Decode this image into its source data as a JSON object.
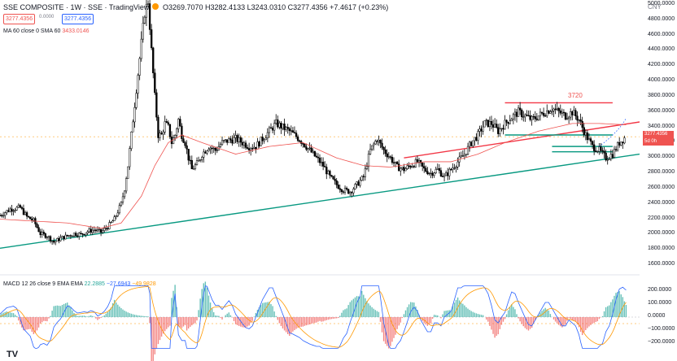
{
  "header": {
    "title": "SSE COMPOSITE · 1W · SSE · TradingView",
    "ohlc": "O3269.7070 H3282.4133 L3243.0310 C3277.4356 +7.4617 (+0.23%)",
    "bid": "3277.4356",
    "spread": "0.0000",
    "ask": "3277.4356",
    "ma_label": "MA 60 close 0 SMA 60",
    "ma_value": "3433.0146",
    "currency": "CNY",
    "logo": "TV"
  },
  "macd": {
    "label": "MACD 12 26 close 9 EMA EMA",
    "hist": "22.2885",
    "macd": "−27.6943",
    "signal": "−49.9828"
  },
  "price_tag": {
    "line1": "3277.4356",
    "line2": "5d 0h"
  },
  "annotation": "3720",
  "colors": {
    "up": "#26a69a",
    "down": "#ef5350",
    "candle": "#000000",
    "ma": "#ef5350",
    "support": "#089981",
    "resistance": "#f23645",
    "macd": "#2962ff",
    "signal": "#ff9800"
  },
  "chart_data": {
    "type": "candlestick",
    "symbol": "SSE COMPOSITE",
    "interval": "1W",
    "ylim": [
      1500,
      5000
    ],
    "y_ticks": [
      "5000.0000",
      "4800.0000",
      "4600.0000",
      "4400.0000",
      "4200.0000",
      "4000.0000",
      "3800.0000",
      "3600.0000",
      "3400.0000",
      "3200.0000",
      "3000.0000",
      "2800.0000",
      "2600.0000",
      "2400.0000",
      "2200.0000",
      "2000.0000",
      "1800.0000",
      "1600.0000"
    ],
    "macd_ticks": [
      "200.0000",
      "100.0000",
      "0.0000",
      "−100.0000",
      "−200.0000"
    ],
    "macd_ylim": [
      -250,
      250
    ],
    "price_path": [
      [
        0,
        2250
      ],
      [
        3,
        2330
      ],
      [
        6,
        2350
      ],
      [
        8,
        2230
      ],
      [
        10,
        2180
      ],
      [
        12,
        2010
      ],
      [
        14,
        1980
      ],
      [
        16,
        1900
      ],
      [
        18,
        1950
      ],
      [
        20,
        1980
      ],
      [
        22,
        2010
      ],
      [
        24,
        2000
      ],
      [
        26,
        2040
      ],
      [
        28,
        2060
      ],
      [
        30,
        2030
      ],
      [
        32,
        2100
      ],
      [
        34,
        2200
      ],
      [
        36,
        2400
      ],
      [
        37,
        2600
      ],
      [
        38,
        2900
      ],
      [
        39,
        3300
      ],
      [
        40,
        3700
      ],
      [
        41,
        4100
      ],
      [
        42,
        4500
      ],
      [
        43,
        4900
      ],
      [
        44,
        5050
      ],
      [
        45,
        4400
      ],
      [
        46,
        3800
      ],
      [
        47,
        3300
      ],
      [
        48,
        3300
      ],
      [
        49,
        3450
      ],
      [
        50,
        3400
      ],
      [
        51,
        3200
      ],
      [
        52,
        3300
      ],
      [
        53,
        3500
      ],
      [
        54,
        3300
      ],
      [
        55,
        3200
      ],
      [
        56,
        3000
      ],
      [
        57,
        2850
      ],
      [
        58,
        2900
      ],
      [
        59,
        2950
      ],
      [
        60,
        3050
      ],
      [
        62,
        3150
      ],
      [
        64,
        3100
      ],
      [
        66,
        3200
      ],
      [
        68,
        3230
      ],
      [
        70,
        3250
      ],
      [
        72,
        3200
      ],
      [
        74,
        3150
      ],
      [
        76,
        3150
      ],
      [
        78,
        3250
      ],
      [
        80,
        3350
      ],
      [
        82,
        3450
      ],
      [
        84,
        3400
      ],
      [
        86,
        3350
      ],
      [
        88,
        3280
      ],
      [
        90,
        3200
      ],
      [
        92,
        3100
      ],
      [
        94,
        3000
      ],
      [
        96,
        2900
      ],
      [
        98,
        2750
      ],
      [
        100,
        2650
      ],
      [
        102,
        2580
      ],
      [
        104,
        2560
      ],
      [
        106,
        2650
      ],
      [
        108,
        2750
      ],
      [
        110,
        3100
      ],
      [
        112,
        3250
      ],
      [
        114,
        3100
      ],
      [
        116,
        3000
      ],
      [
        118,
        2880
      ],
      [
        120,
        2850
      ],
      [
        122,
        2900
      ],
      [
        124,
        2950
      ],
      [
        126,
        2850
      ],
      [
        128,
        2800
      ],
      [
        130,
        2850
      ],
      [
        132,
        2750
      ],
      [
        134,
        2850
      ],
      [
        136,
        2950
      ],
      [
        138,
        3050
      ],
      [
        140,
        3200
      ],
      [
        142,
        3300
      ],
      [
        144,
        3450
      ],
      [
        146,
        3450
      ],
      [
        148,
        3350
      ],
      [
        150,
        3450
      ],
      [
        152,
        3530
      ],
      [
        154,
        3600
      ],
      [
        156,
        3550
      ],
      [
        158,
        3500
      ],
      [
        160,
        3550
      ],
      [
        162,
        3600
      ],
      [
        164,
        3650
      ],
      [
        166,
        3600
      ],
      [
        168,
        3550
      ],
      [
        170,
        3600
      ],
      [
        172,
        3500
      ],
      [
        174,
        3300
      ],
      [
        176,
        3150
      ],
      [
        178,
        3100
      ],
      [
        180,
        3000
      ],
      [
        182,
        3050
      ],
      [
        184,
        3200
      ],
      [
        186,
        3280
      ]
    ],
    "ma60_path": [
      [
        0,
        2200
      ],
      [
        20,
        2150
      ],
      [
        30,
        2080
      ],
      [
        36,
        2150
      ],
      [
        42,
        2500
      ],
      [
        46,
        2900
      ],
      [
        50,
        3200
      ],
      [
        54,
        3300
      ],
      [
        60,
        3200
      ],
      [
        70,
        3050
      ],
      [
        80,
        3150
      ],
      [
        90,
        3200
      ],
      [
        100,
        3000
      ],
      [
        108,
        2900
      ],
      [
        116,
        2880
      ],
      [
        126,
        2950
      ],
      [
        134,
        2950
      ],
      [
        142,
        3050
      ],
      [
        150,
        3200
      ],
      [
        160,
        3350
      ],
      [
        170,
        3450
      ],
      [
        178,
        3450
      ],
      [
        186,
        3433
      ]
    ],
    "lines": [
      {
        "kind": "support",
        "x": [
          0,
          190
        ],
        "y": [
          1820,
          3050
        ]
      },
      {
        "kind": "resistance",
        "x": [
          120,
          190
        ],
        "y": [
          3000,
          3470
        ]
      },
      {
        "kind": "horizontal-red",
        "x": [
          150,
          182
        ],
        "y": [
          3720,
          3720
        ]
      },
      {
        "kind": "horizontal-teal",
        "x": [
          150,
          182
        ],
        "y": [
          3300,
          3300
        ]
      },
      {
        "kind": "horizontal-teal",
        "x": [
          164,
          182
        ],
        "y": [
          3150,
          3150
        ]
      },
      {
        "kind": "horizontal-teal",
        "x": [
          164,
          182
        ],
        "y": [
          3080,
          3080
        ]
      }
    ],
    "current_price": 3277.4356
  }
}
